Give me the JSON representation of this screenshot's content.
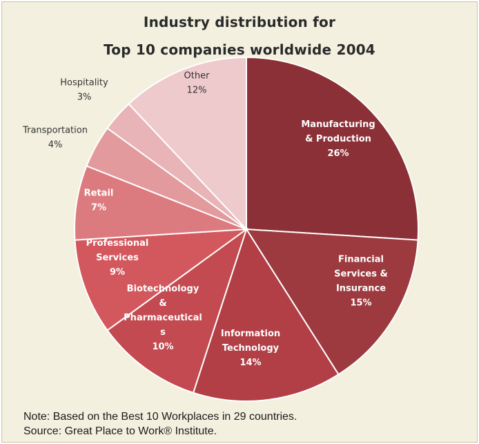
{
  "chart_data": {
    "type": "pie",
    "title_line1": "Industry distribution  for",
    "title_line2": "Top 10 companies worldwide  2004",
    "slices": [
      {
        "label_lines": [
          "Manufacturing",
          "& Production",
          "26%"
        ],
        "value": 26,
        "color": "#8b3036",
        "label_color": "#ffffff",
        "label_inside": true
      },
      {
        "label_lines": [
          "Financial",
          "Services &",
          "Insurance",
          "15%"
        ],
        "value": 15,
        "color": "#9c3a3f",
        "label_color": "#ffffff",
        "label_inside": true
      },
      {
        "label_lines": [
          "Information",
          "Technology",
          "14%"
        ],
        "value": 14,
        "color": "#b13f45",
        "label_color": "#ffffff",
        "label_inside": true
      },
      {
        "label_lines": [
          "Biotechnology",
          "&",
          "Pharmaceutical",
          "s",
          "10%"
        ],
        "value": 10,
        "color": "#c34a50",
        "label_color": "#ffffff",
        "label_inside": true
      },
      {
        "label_lines": [
          "Professional",
          "Services",
          "9%"
        ],
        "value": 9,
        "color": "#d3585d",
        "label_color": "#ffffff",
        "label_inside": true
      },
      {
        "label_lines": [
          "Retail",
          "7%"
        ],
        "value": 7,
        "color": "#dc7b7f",
        "label_color": "#ffffff",
        "label_inside": true
      },
      {
        "label_lines": [
          "Transportation",
          "4%"
        ],
        "value": 4,
        "color": "#e39a9d",
        "label_color": "#333333",
        "label_inside": false
      },
      {
        "label_lines": [
          "Hospitality",
          "3%"
        ],
        "value": 3,
        "color": "#e8b4b7",
        "label_color": "#333333",
        "label_inside": false
      },
      {
        "label_lines": [
          "Other",
          "12%"
        ],
        "value": 12,
        "color": "#efcacc",
        "label_color": "#333333",
        "label_inside": true
      }
    ]
  },
  "notes": {
    "line1": "Note: Based on the Best 10 Workplaces in 29 countries.",
    "line2": "Source: Great Place to Work® Institute."
  }
}
